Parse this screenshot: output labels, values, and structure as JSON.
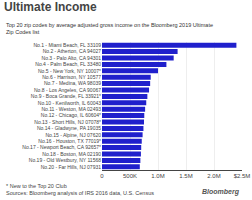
{
  "chart_data": {
    "type": "bar",
    "orientation": "horizontal",
    "title": "Ultimate Income",
    "subtitle": "Top 20 zip codes by average adjusted gross income on the Bloomberg 2019 Ultimate\nZip Codes list",
    "annotations": [
      "* New to the Top 20 Club\nSources: Bloomberg analysis of IRS 2016 data, U.S. Census",
      "Bloomberg"
    ],
    "categories": [
      "No.1 - Miami Beach, FL 33109",
      "No.2 - Atherton, CA 94027",
      "No.3 - Palo Alto, CA 94301",
      "No.4 - Palm Beach, FL 33480",
      "No.5 - New York, NY 10007*",
      "No.6 - Harrison, NY 10577",
      "No.7 - Medina, WA 98039",
      "No.8 - Los Angeles, CA 90067",
      "No.9 - Boca Grande, FL 33921*",
      "No.10 - Kenilworth, IL 60043",
      "No.11 - Weston, MA 02493",
      "No.12 - Chicago, IL 60604*",
      "No.13 - Short Hills, NJ 07078*",
      "No.14 - Gladwyne, PA 19035",
      "No.15 - Alpine, NJ 07620",
      "No.16 - Houston, TX 77019*",
      "No.17 - Newport Beach, CA 92657*",
      "No.18 - Boston, MA 02190",
      "No.19 - Old Westbury, NY 11568",
      "No.20 - Far Hills, NJ 07931"
    ],
    "values": [
      2400000,
      1350000,
      1280000,
      1150000,
      1000000,
      870000,
      860000,
      840000,
      810000,
      790000,
      770000,
      755000,
      750000,
      740000,
      725000,
      710000,
      700000,
      695000,
      685000,
      675000
    ],
    "color": "#2020cc",
    "xlim": [
      0,
      2500000
    ],
    "xticks": [
      0,
      {
        "value": 500000,
        "label": "500K"
      },
      {
        "value": 1000000,
        "label": "1.0M"
      },
      {
        "value": 1500000,
        "label": "1.5M"
      },
      {
        "value": 2000000,
        "label": "2.0M"
      },
      {
        "value": 2500000,
        "label": "$2.5M"
      }
    ],
    "grid": true
  }
}
